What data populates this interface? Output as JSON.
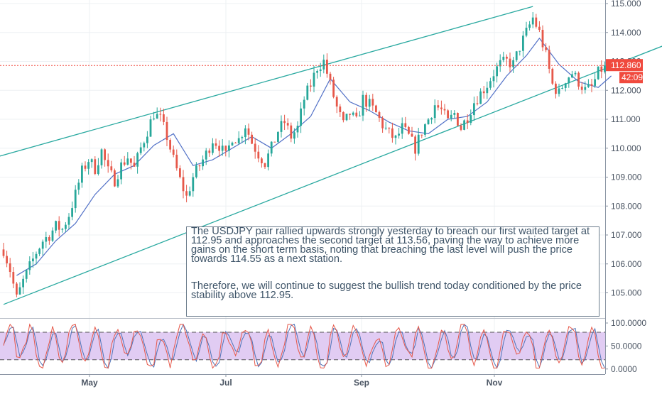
{
  "chart_data": [
    {
      "type": "candlestick",
      "symbol": "USDJPY",
      "y_axis_ticks": [
        "115.000",
        "114.000",
        "113.000",
        "112.000",
        "111.000",
        "110.000",
        "109.000",
        "108.000",
        "107.000",
        "106.000",
        "105.000"
      ],
      "ylim": [
        104.35,
        115.1
      ],
      "x_axis_ticks": [
        "May",
        "Jul",
        "Sep",
        "Nov"
      ],
      "last_price_label": "112.860",
      "countdown_label": "42:09",
      "last_price": 112.86,
      "price_path": [
        [
          0,
          106.5
        ],
        [
          2,
          105.8
        ],
        [
          4,
          104.8
        ],
        [
          6,
          105.4
        ],
        [
          8,
          105.9
        ],
        [
          10,
          106.4
        ],
        [
          12,
          106.8
        ],
        [
          14,
          107.0
        ],
        [
          16,
          107.3
        ],
        [
          18,
          107.2
        ],
        [
          20,
          107.7
        ],
        [
          22,
          108.4
        ],
        [
          24,
          109.2
        ],
        [
          26,
          109.6
        ],
        [
          28,
          109.3
        ],
        [
          30,
          109.9
        ],
        [
          32,
          109.2
        ],
        [
          34,
          108.9
        ],
        [
          36,
          109.4
        ],
        [
          38,
          109.7
        ],
        [
          40,
          109.3
        ],
        [
          42,
          110.0
        ],
        [
          44,
          110.6
        ],
        [
          46,
          111.2
        ],
        [
          48,
          111.0
        ],
        [
          50,
          110.4
        ],
        [
          52,
          109.6
        ],
        [
          54,
          108.9
        ],
        [
          56,
          108.3
        ],
        [
          58,
          109.0
        ],
        [
          60,
          109.4
        ],
        [
          62,
          109.8
        ],
        [
          64,
          110.3
        ],
        [
          66,
          110.1
        ],
        [
          68,
          109.7
        ],
        [
          70,
          110.4
        ],
        [
          72,
          110.3
        ],
        [
          74,
          110.8
        ],
        [
          76,
          110.2
        ],
        [
          78,
          109.8
        ],
        [
          80,
          109.5
        ],
        [
          82,
          110.0
        ],
        [
          84,
          110.6
        ],
        [
          86,
          110.9
        ],
        [
          88,
          110.4
        ],
        [
          90,
          110.7
        ],
        [
          92,
          111.7
        ],
        [
          94,
          112.2
        ],
        [
          96,
          112.8
        ],
        [
          98,
          113.0
        ],
        [
          100,
          112.2
        ],
        [
          102,
          111.4
        ],
        [
          104,
          110.8
        ],
        [
          106,
          111.2
        ],
        [
          108,
          110.9
        ],
        [
          110,
          111.7
        ],
        [
          112,
          111.5
        ],
        [
          114,
          111.2
        ],
        [
          116,
          110.8
        ],
        [
          118,
          110.5
        ],
        [
          120,
          110.3
        ],
        [
          122,
          110.7
        ],
        [
          124,
          110.4
        ],
        [
          126,
          110.0
        ],
        [
          128,
          110.6
        ],
        [
          130,
          111.0
        ],
        [
          132,
          111.5
        ],
        [
          134,
          111.3
        ],
        [
          136,
          110.9
        ],
        [
          138,
          111.2
        ],
        [
          140,
          110.7
        ],
        [
          142,
          111.1
        ],
        [
          144,
          111.6
        ],
        [
          146,
          111.9
        ],
        [
          148,
          112.2
        ],
        [
          150,
          112.6
        ],
        [
          152,
          112.9
        ],
        [
          154,
          113.0
        ],
        [
          156,
          112.9
        ],
        [
          158,
          113.5
        ],
        [
          160,
          114.0
        ],
        [
          162,
          114.5
        ],
        [
          164,
          114.0
        ],
        [
          166,
          113.2
        ],
        [
          168,
          112.2
        ],
        [
          170,
          111.9
        ],
        [
          172,
          112.4
        ],
        [
          174,
          112.6
        ],
        [
          176,
          112.3
        ],
        [
          178,
          112.0
        ],
        [
          180,
          112.1
        ],
        [
          182,
          112.6
        ],
        [
          184,
          112.86
        ]
      ],
      "moving_average_path": [
        [
          4,
          105.6
        ],
        [
          10,
          106.0
        ],
        [
          16,
          106.8
        ],
        [
          22,
          107.4
        ],
        [
          28,
          108.4
        ],
        [
          34,
          109.1
        ],
        [
          40,
          109.4
        ],
        [
          46,
          110.1
        ],
        [
          52,
          110.5
        ],
        [
          58,
          109.4
        ],
        [
          64,
          109.6
        ],
        [
          70,
          110.0
        ],
        [
          76,
          110.4
        ],
        [
          82,
          110.0
        ],
        [
          88,
          110.5
        ],
        [
          94,
          111.1
        ],
        [
          100,
          112.4
        ],
        [
          106,
          111.6
        ],
        [
          112,
          111.3
        ],
        [
          118,
          110.9
        ],
        [
          124,
          110.6
        ],
        [
          130,
          110.5
        ],
        [
          136,
          111.0
        ],
        [
          142,
          111.1
        ],
        [
          148,
          111.6
        ],
        [
          154,
          112.5
        ],
        [
          160,
          113.2
        ],
        [
          164,
          113.8
        ],
        [
          170,
          112.9
        ],
        [
          176,
          112.3
        ],
        [
          182,
          112.1
        ],
        [
          186,
          112.5
        ]
      ],
      "channel_lines": [
        {
          "from": [
            -2,
            109.7
          ],
          "to": [
            162,
            114.9
          ]
        },
        {
          "from": [
            0,
            104.6
          ],
          "to": [
            210,
            113.9
          ]
        }
      ],
      "horizontal_line_level": 112.86,
      "colors": {
        "up": "#27a79a",
        "down": "#e6584a",
        "channel": "#29a9a0",
        "ma": "#5271c7",
        "price_line": "#f04a3e"
      }
    },
    {
      "type": "line",
      "indicator": "oscillator",
      "y_axis_ticks": [
        "100.0000",
        "50.0000",
        "0.0000"
      ],
      "ylim": [
        -2,
        100
      ],
      "levels": [
        80,
        20
      ],
      "colors": {
        "band": "#e1ccf3",
        "line": "#e6584a",
        "line2": "#4e73b8"
      }
    }
  ],
  "annotation": {
    "paragraph1": "The USDJPY pair rallied upwards strongly yesterday to breach our first waited target at 112.95 and approaches the second target at 113.56, paving the way to achieve more gains on the short term basis, noting that breaching the last level will push the price towards 114.55 as a next station.",
    "paragraph2": "Therefore, we will continue to suggest the bullish trend today conditioned by the price stability above 112.95."
  }
}
